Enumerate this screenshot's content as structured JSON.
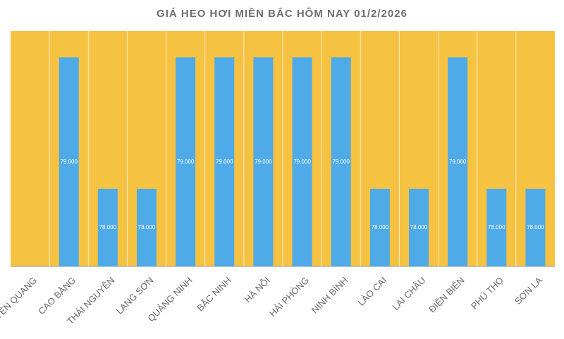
{
  "chart_data": {
    "type": "bar",
    "title": "GIÁ HEO HƠI MIỀN BẮC HÔM NAY 01/2/2026",
    "categories": [
      "TUYÊN QUANG",
      "CAO BẰNG",
      "THÁI NGUYÊN",
      "LẠNG SƠN",
      "QUẢNG NINH",
      "BẮC NINH",
      "HÀ NỘI",
      "HẢI PHÒNG",
      "NINH BÌNH",
      "LÀO CAI",
      "LAI CHÂU",
      "ĐIỆN BIÊN",
      "PHÚ THỌ",
      "SƠN LA"
    ],
    "values": [
      null,
      79000,
      78000,
      78000,
      79000,
      79000,
      79000,
      79000,
      79000,
      78000,
      78000,
      79000,
      78000,
      78000
    ],
    "value_labels": [
      null,
      "79.000",
      "78.000",
      "78.000",
      "79.000",
      "79.000",
      "79.000",
      "79.000",
      "79.000",
      "78.000",
      "78.000",
      "79.000",
      "78.000",
      "78.000"
    ],
    "color": "#4faae8",
    "background": "#f5c242",
    "ylim": [
      77410,
      79200
    ]
  }
}
